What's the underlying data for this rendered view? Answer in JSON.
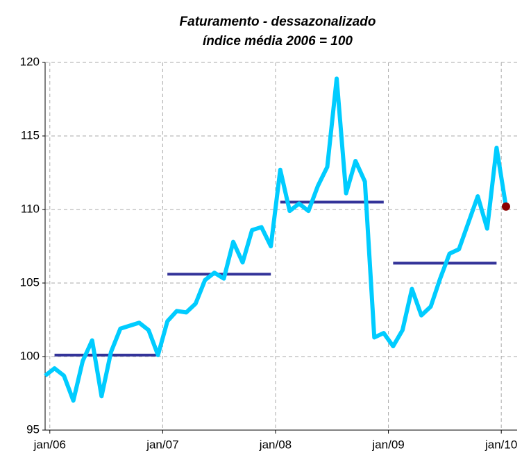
{
  "chart_data": {
    "type": "line",
    "title": "Faturamento - dessazonalizado",
    "subtitle": "índice média 2006 = 100",
    "categories": [
      null,
      "jan/06",
      null,
      null,
      null,
      null,
      null,
      null,
      null,
      null,
      null,
      null,
      null,
      "jan/07",
      null,
      null,
      null,
      null,
      null,
      null,
      null,
      null,
      null,
      null,
      null,
      "jan/08",
      null,
      null,
      null,
      null,
      null,
      null,
      null,
      null,
      null,
      null,
      null,
      "jan/09",
      null,
      null,
      null,
      null,
      null,
      null,
      null,
      null,
      null,
      null,
      null,
      "jan/10"
    ],
    "values": [
      98.7,
      99.2,
      98.7,
      97.0,
      99.7,
      101.1,
      97.3,
      100.3,
      101.9,
      102.1,
      102.3,
      101.8,
      100.1,
      102.4,
      103.1,
      103.0,
      103.6,
      105.2,
      105.7,
      105.3,
      107.8,
      106.4,
      108.6,
      108.8,
      107.5,
      112.7,
      109.9,
      110.4,
      109.9,
      111.6,
      112.9,
      118.9,
      111.1,
      113.3,
      111.9,
      101.3,
      101.6,
      100.7,
      101.8,
      104.6,
      102.8,
      103.4,
      105.3,
      107.0,
      107.3,
      109.1,
      110.9,
      108.7,
      114.2,
      110.2
    ],
    "color": "#00ccff",
    "averages": [
      100.1,
      105.6,
      110.5,
      106.35
    ],
    "average_color": "#333399",
    "last_point_color": "#8b0000",
    "ylim": [
      95,
      120
    ],
    "yticks": [
      95,
      100,
      105,
      110,
      115,
      120
    ],
    "grid": true
  }
}
